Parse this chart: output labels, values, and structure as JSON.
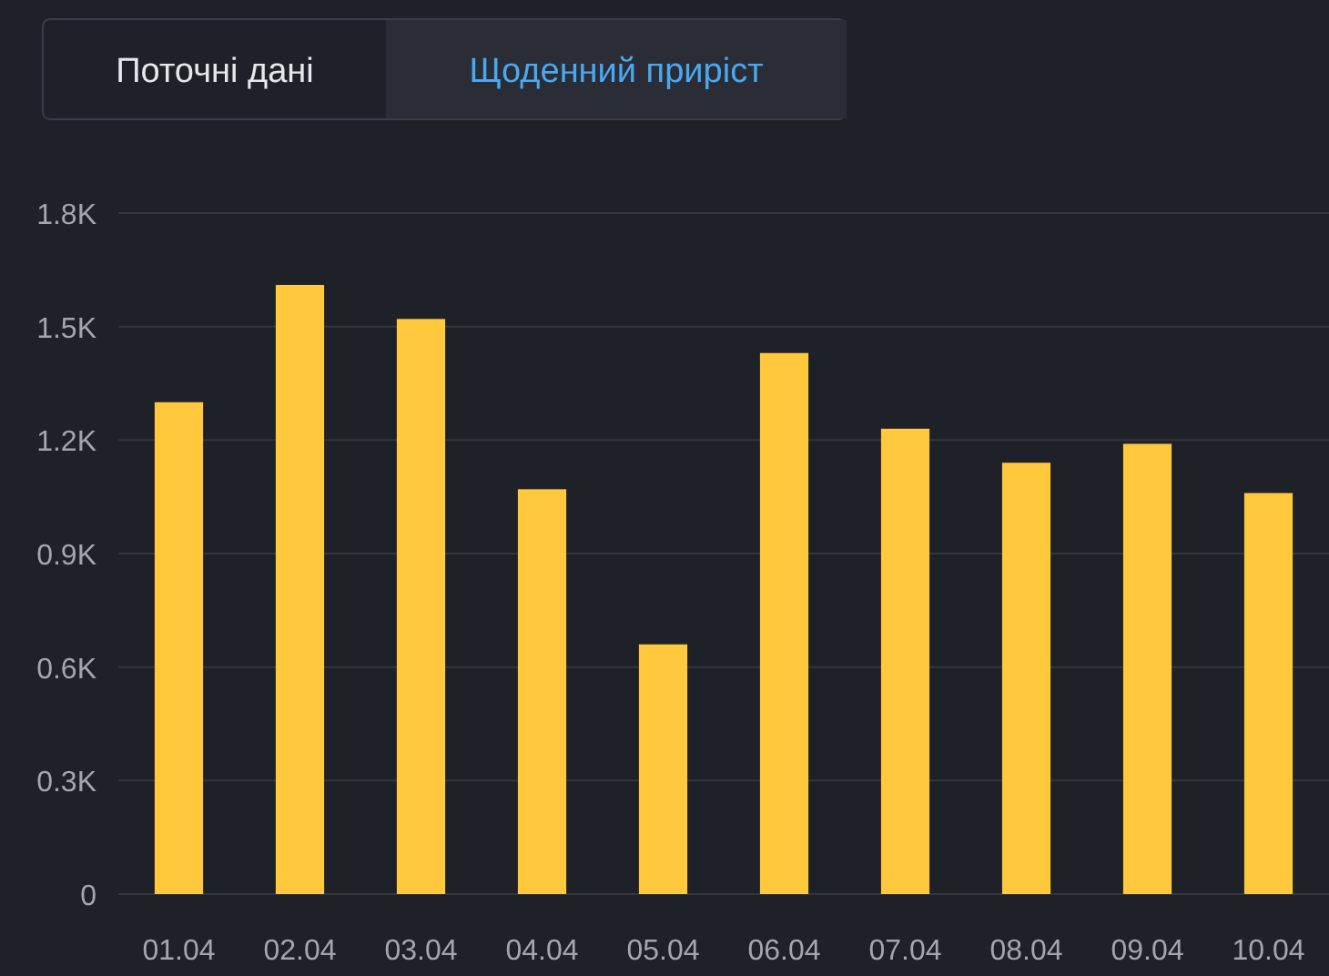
{
  "chart_data": {
    "type": "bar",
    "categories": [
      "01.04",
      "02.04",
      "03.04",
      "04.04",
      "05.04",
      "06.04",
      "07.04",
      "08.04",
      "09.04",
      "10.04"
    ],
    "values": [
      1300,
      1610,
      1520,
      1070,
      660,
      1430,
      1230,
      1140,
      1190,
      1060
    ],
    "color": "#ffc83d",
    "ylim": [
      0,
      1800
    ],
    "yticks": [
      {
        "value": 0,
        "label": "0"
      },
      {
        "value": 300,
        "label": "0.3K"
      },
      {
        "value": 600,
        "label": "0.6K"
      },
      {
        "value": 900,
        "label": "0.9K"
      },
      {
        "value": 1200,
        "label": "1.2K"
      },
      {
        "value": 1500,
        "label": "1.5K"
      },
      {
        "value": 1800,
        "label": "1.8K"
      }
    ],
    "grid": "y",
    "annotations": [
      "Поточні дані",
      "Щоденний приріст"
    ]
  }
}
